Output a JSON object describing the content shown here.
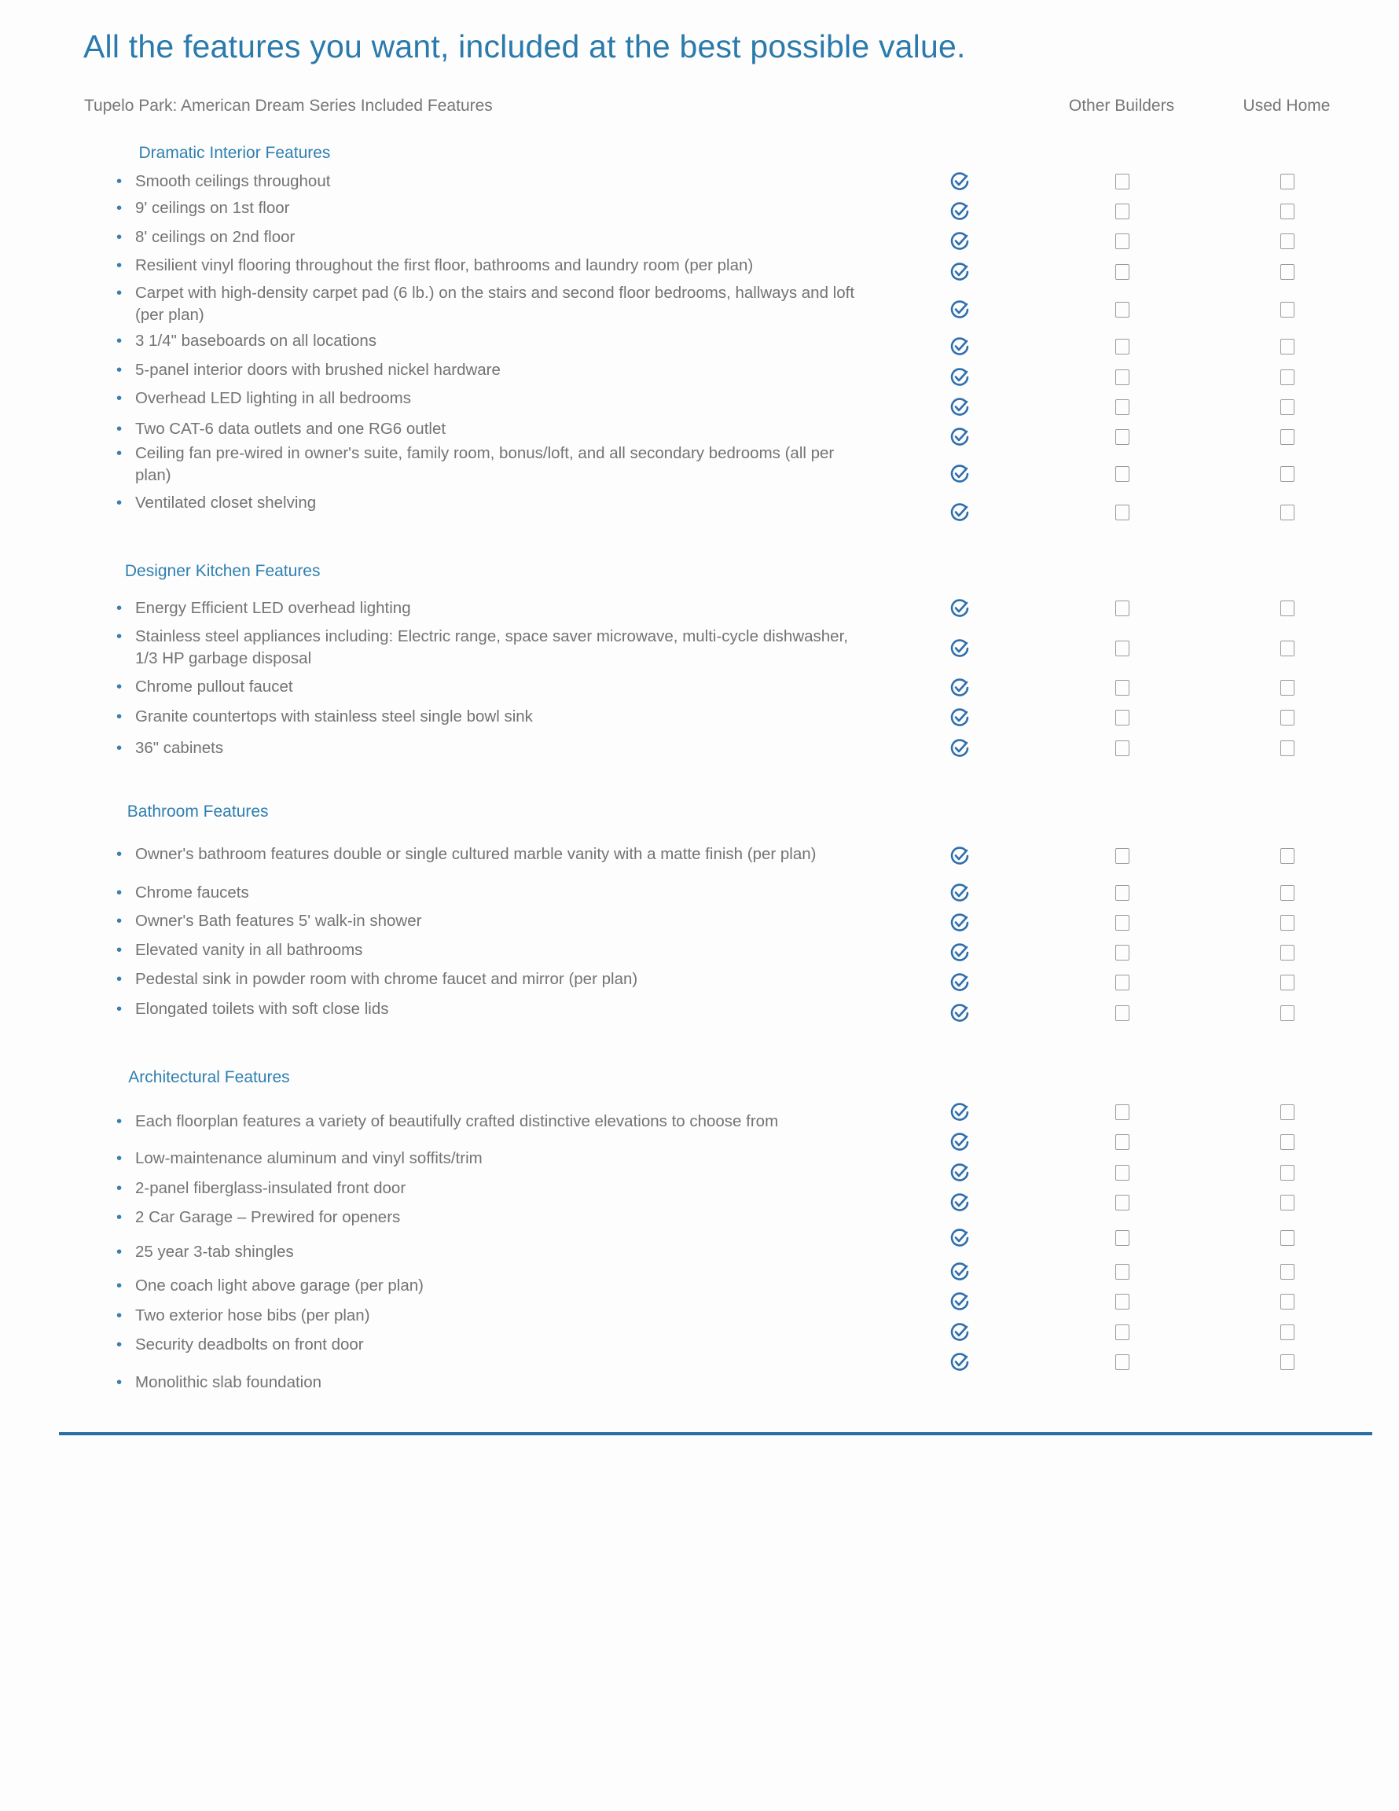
{
  "title": "All the features you want, included at the best possible value.",
  "subtitle": "Tupelo Park: American Dream Series Included Features",
  "columns": [
    "Other Builders",
    "Used Home"
  ],
  "colors": {
    "accent": "#2a7aac",
    "text": "#737373",
    "rule": "#2a6ea8"
  },
  "icons": {
    "included": "circle-check-icon",
    "not_included": "empty-checkbox-icon"
  },
  "sections": [
    {
      "heading": "Dramatic Interior Features",
      "items": [
        "Smooth ceilings throughout",
        "9' ceilings on 1st floor",
        "8' ceilings on 2nd floor",
        "Resilient vinyl flooring throughout the first floor, bathrooms and laundry room (per plan)",
        "Carpet with high-density carpet pad (6 lb.) on the stairs and second floor bedrooms, hallways and loft (per plan)",
        "3 1/4\" baseboards on all locations",
        "5-panel interior doors with brushed nickel hardware",
        "Overhead LED lighting in all bedrooms",
        "Two CAT-6 data outlets and one RG6 outlet",
        "Ceiling fan pre-wired in owner's suite, family room, bonus/loft, and all secondary bedrooms (all per plan)",
        "Ventilated closet shelving"
      ]
    },
    {
      "heading": "Designer Kitchen Features",
      "items": [
        "Energy Efficient LED overhead lighting",
        "Stainless steel appliances including: Electric range, space saver microwave, multi-cycle dishwasher, 1/3 HP garbage disposal",
        "Chrome pullout faucet",
        "Granite countertops with stainless steel single bowl sink",
        "36\" cabinets"
      ]
    },
    {
      "heading": "Bathroom Features",
      "items": [
        "Owner's bathroom features double or single cultured marble vanity with a matte finish (per plan)",
        "Chrome faucets",
        "Owner's Bath features 5' walk-in shower",
        "Elevated vanity in all bathrooms",
        "Pedestal sink in powder room with chrome faucet and mirror (per plan)",
        "Elongated toilets with soft close lids"
      ]
    },
    {
      "heading": "Architectural Features",
      "items": [
        "Each floorplan features a variety of beautifully crafted distinctive elevations to choose from",
        "Low-maintenance aluminum and vinyl soffits/trim",
        "2-panel fiberglass-insulated front door",
        "2 Car Garage – Prewired for openers",
        "25 year 3-tab shingles",
        "One coach light above garage (per plan)",
        "Two exterior hose bibs (per plan)",
        "Security deadbolts on front door",
        "Monolithic slab foundation"
      ]
    }
  ]
}
